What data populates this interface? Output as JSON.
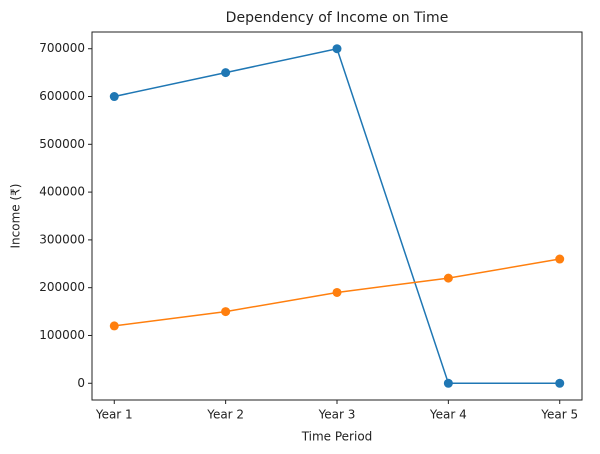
{
  "chart_data": {
    "type": "line",
    "title": "Dependency of Income on Time",
    "x_label": "Time Period",
    "y_label": "Income (₹)",
    "categories": [
      "Year 1",
      "Year 2",
      "Year 3",
      "Year 4",
      "Year 5"
    ],
    "series": [
      {
        "color": "#1f77b4",
        "values": [
          600000,
          650000,
          700000,
          0,
          0
        ]
      },
      {
        "color": "#ff7f0e",
        "values": [
          120000,
          150000,
          190000,
          220000,
          260000
        ]
      }
    ],
    "ylim": [
      -35000,
      735000
    ],
    "yticks": [
      0,
      100000,
      200000,
      300000,
      400000,
      500000,
      600000,
      700000
    ],
    "grid": false
  }
}
